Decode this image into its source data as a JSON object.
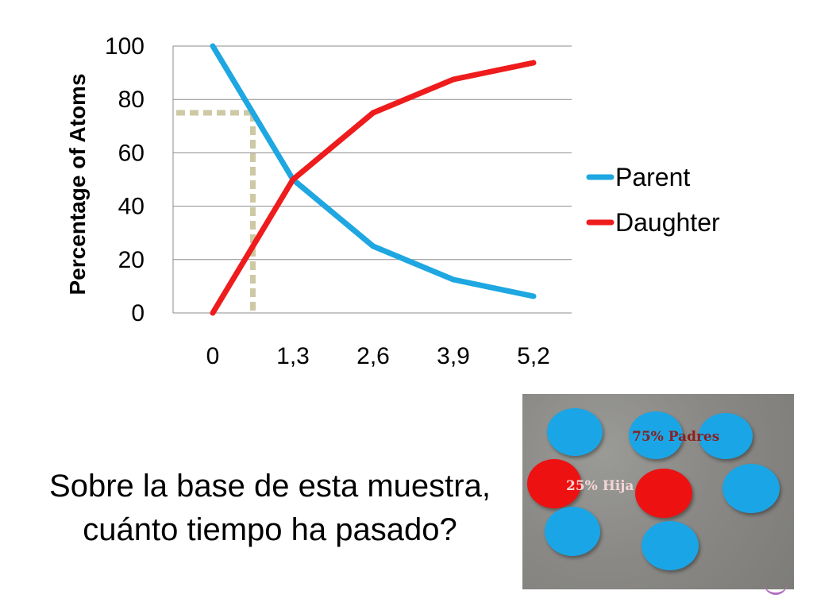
{
  "chart_data": {
    "type": "line",
    "categories": [
      "0",
      "1,3",
      "2,6",
      "3,9",
      "5,2"
    ],
    "series": [
      {
        "name": "Parent",
        "values": [
          100,
          50,
          25,
          12.5,
          6.25
        ],
        "color": "#1ea7e1"
      },
      {
        "name": "Daughter",
        "values": [
          0,
          50,
          75,
          87.5,
          93.75
        ],
        "color": "#ee1c1c"
      }
    ],
    "ylabel": "Percentage of Atoms",
    "xlabel": "",
    "yticks": [
      "0",
      "20",
      "40",
      "60",
      "80",
      "100"
    ],
    "ylim": [
      0,
      100
    ],
    "grid": true,
    "legend_position": "right",
    "annotation": {
      "type": "dotted-guide",
      "x": 0.65,
      "y": 75,
      "color": "#cdc9a5"
    }
  },
  "question": "Sobre la base de esta muestra, cuánto tiempo ha pasado?",
  "photo": {
    "parent_label": "75% Padres",
    "daughter_label": "25% Hija",
    "disc_colors": {
      "parent": "#1aa6e6",
      "daughter": "#ee1111"
    }
  }
}
